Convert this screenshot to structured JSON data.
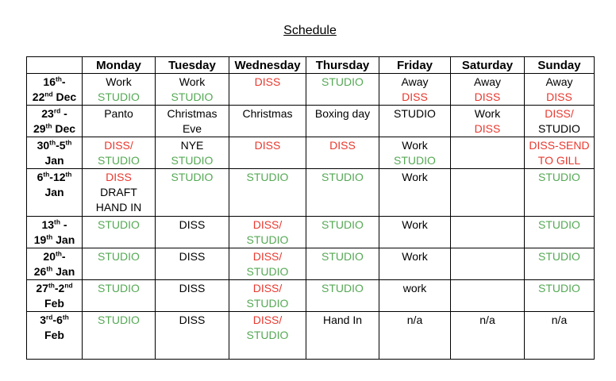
{
  "title": "Schedule",
  "colors": {
    "black": "#000000",
    "red": "#e8392f",
    "green": "#55a955"
  },
  "table": {
    "headers": [
      "",
      "Monday",
      "Tuesday",
      "Wednesday",
      "Thursday",
      "Friday",
      "Saturday",
      "Sunday"
    ],
    "rows": [
      {
        "date_lines": [
          [
            {
              "t": "16"
            },
            {
              "t": "th",
              "sup": true
            },
            {
              "t": "-"
            }
          ],
          [
            {
              "t": "22"
            },
            {
              "t": "nd",
              "sup": true
            },
            {
              "t": " Dec"
            }
          ]
        ],
        "cells": [
          [
            {
              "t": "Work",
              "c": "black"
            },
            {
              "t": "STUDIO",
              "c": "green"
            }
          ],
          [
            {
              "t": "Work",
              "c": "black"
            },
            {
              "t": "STUDIO",
              "c": "green"
            }
          ],
          [
            {
              "t": "DISS",
              "c": "red"
            }
          ],
          [
            {
              "t": "STUDIO",
              "c": "green"
            }
          ],
          [
            {
              "t": "Away",
              "c": "black"
            },
            {
              "t": "DISS",
              "c": "red"
            }
          ],
          [
            {
              "t": "Away",
              "c": "black"
            },
            {
              "t": "DISS",
              "c": "red"
            }
          ],
          [
            {
              "t": "Away",
              "c": "black"
            },
            {
              "t": "DISS",
              "c": "red"
            }
          ]
        ]
      },
      {
        "date_lines": [
          [
            {
              "t": "23"
            },
            {
              "t": "rd",
              "sup": true
            },
            {
              "t": " -"
            }
          ],
          [
            {
              "t": "29"
            },
            {
              "t": "th",
              "sup": true
            },
            {
              "t": " Dec"
            }
          ]
        ],
        "cells": [
          [
            {
              "t": "Panto",
              "c": "black"
            }
          ],
          [
            {
              "t": "Christmas",
              "c": "black"
            },
            {
              "t": "Eve",
              "c": "black"
            }
          ],
          [
            {
              "t": "Christmas",
              "c": "black"
            }
          ],
          [
            {
              "t": "Boxing day",
              "c": "black"
            }
          ],
          [
            {
              "t": "STUDIO",
              "c": "black"
            }
          ],
          [
            {
              "t": "Work",
              "c": "black"
            },
            {
              "t": "DISS",
              "c": "red"
            }
          ],
          [
            {
              "t": "DISS/",
              "c": "red"
            },
            {
              "t": "STUDIO",
              "c": "black"
            }
          ]
        ]
      },
      {
        "date_lines": [
          [
            {
              "t": "30"
            },
            {
              "t": "th",
              "sup": true
            },
            {
              "t": "-5"
            },
            {
              "t": "th",
              "sup": true
            }
          ],
          [
            {
              "t": "Jan"
            }
          ]
        ],
        "cells": [
          [
            {
              "t": "DISS/",
              "c": "red"
            },
            {
              "t": "STUDIO",
              "c": "green"
            }
          ],
          [
            {
              "t": "NYE",
              "c": "black"
            },
            {
              "t": "STUDIO",
              "c": "green"
            }
          ],
          [
            {
              "t": "DISS",
              "c": "red"
            }
          ],
          [
            {
              "t": "DISS",
              "c": "red"
            }
          ],
          [
            {
              "t": "Work",
              "c": "black"
            },
            {
              "t": "STUDIO",
              "c": "green"
            }
          ],
          [],
          [
            {
              "t": "DISS-SEND",
              "c": "red"
            },
            {
              "t": "TO GILL",
              "c": "red"
            }
          ]
        ]
      },
      {
        "date_lines": [
          [
            {
              "t": "6"
            },
            {
              "t": "th",
              "sup": true
            },
            {
              "t": "-12"
            },
            {
              "t": "th",
              "sup": true
            }
          ],
          [
            {
              "t": "Jan"
            }
          ]
        ],
        "cells": [
          [
            {
              "t": "DISS",
              "c": "red"
            },
            {
              "t": "DRAFT",
              "c": "black"
            },
            {
              "t": "HAND IN",
              "c": "black"
            }
          ],
          [
            {
              "t": "STUDIO",
              "c": "green"
            }
          ],
          [
            {
              "t": "STUDIO",
              "c": "green"
            }
          ],
          [
            {
              "t": "STUDIO",
              "c": "green"
            }
          ],
          [
            {
              "t": "Work",
              "c": "black"
            }
          ],
          [],
          [
            {
              "t": "STUDIO",
              "c": "green"
            }
          ]
        ]
      },
      {
        "date_lines": [
          [
            {
              "t": "13"
            },
            {
              "t": "th",
              "sup": true
            },
            {
              "t": " -"
            }
          ],
          [
            {
              "t": "19"
            },
            {
              "t": "th",
              "sup": true
            },
            {
              "t": " Jan"
            }
          ]
        ],
        "cells": [
          [
            {
              "t": "STUDIO",
              "c": "green"
            }
          ],
          [
            {
              "t": "DISS",
              "c": "black"
            }
          ],
          [
            {
              "t": "DISS/",
              "c": "red"
            },
            {
              "t": "STUDIO",
              "c": "green"
            }
          ],
          [
            {
              "t": "STUDIO",
              "c": "green"
            }
          ],
          [
            {
              "t": "Work",
              "c": "black"
            }
          ],
          [],
          [
            {
              "t": "STUDIO",
              "c": "green"
            }
          ]
        ]
      },
      {
        "date_lines": [
          [
            {
              "t": "20"
            },
            {
              "t": "th",
              "sup": true
            },
            {
              "t": "-"
            }
          ],
          [
            {
              "t": "26"
            },
            {
              "t": "th",
              "sup": true
            },
            {
              "t": " Jan"
            }
          ]
        ],
        "cells": [
          [
            {
              "t": "STUDIO",
              "c": "green"
            }
          ],
          [
            {
              "t": "DISS",
              "c": "black"
            }
          ],
          [
            {
              "t": "DISS/",
              "c": "red"
            },
            {
              "t": "STUDIO",
              "c": "green"
            }
          ],
          [
            {
              "t": "STUDIO",
              "c": "green"
            }
          ],
          [
            {
              "t": "Work",
              "c": "black"
            }
          ],
          [],
          [
            {
              "t": "STUDIO",
              "c": "green"
            }
          ]
        ]
      },
      {
        "date_lines": [
          [
            {
              "t": "27"
            },
            {
              "t": "th",
              "sup": true
            },
            {
              "t": "-2"
            },
            {
              "t": "nd",
              "sup": true
            }
          ],
          [
            {
              "t": "Feb"
            }
          ]
        ],
        "cells": [
          [
            {
              "t": "STUDIO",
              "c": "green"
            }
          ],
          [
            {
              "t": "DISS",
              "c": "black"
            }
          ],
          [
            {
              "t": "DISS/",
              "c": "red"
            },
            {
              "t": "STUDIO",
              "c": "green"
            }
          ],
          [
            {
              "t": "STUDIO",
              "c": "green"
            }
          ],
          [
            {
              "t": "work",
              "c": "black"
            }
          ],
          [],
          [
            {
              "t": "STUDIO",
              "c": "green"
            }
          ]
        ]
      },
      {
        "date_lines": [
          [
            {
              "t": "3"
            },
            {
              "t": "rd",
              "sup": true
            },
            {
              "t": "-6"
            },
            {
              "t": "th",
              "sup": true
            }
          ],
          [
            {
              "t": "Feb"
            }
          ]
        ],
        "cells": [
          [
            {
              "t": "STUDIO",
              "c": "green"
            }
          ],
          [
            {
              "t": "DISS",
              "c": "black"
            }
          ],
          [
            {
              "t": "DISS/",
              "c": "red"
            },
            {
              "t": "STUDIO",
              "c": "green"
            }
          ],
          [
            {
              "t": "Hand In",
              "c": "black"
            }
          ],
          [
            {
              "t": "n/a",
              "c": "black"
            }
          ],
          [
            {
              "t": "n/a",
              "c": "black"
            }
          ],
          [
            {
              "t": "n/a",
              "c": "black"
            }
          ]
        ]
      }
    ]
  }
}
